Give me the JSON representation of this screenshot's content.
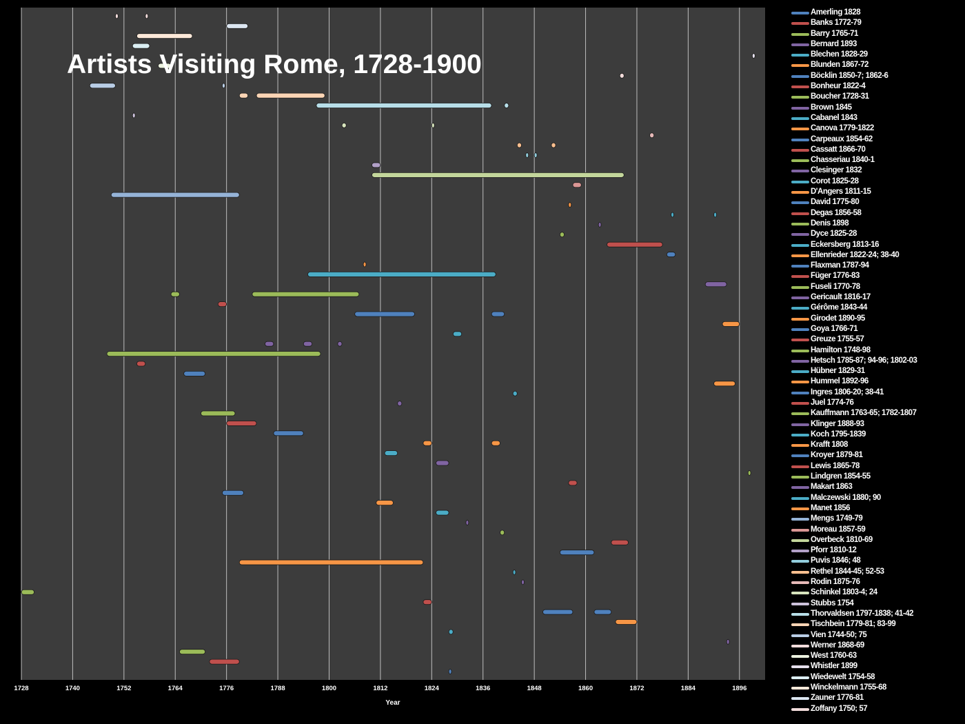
{
  "chart_data": {
    "type": "bar",
    "title": "Artists Visiting Rome, 1728-1900",
    "xlabel": "Year",
    "ylabel": "",
    "xlim": [
      1728,
      1902
    ],
    "xticks": [
      1728,
      1740,
      1752,
      1764,
      1776,
      1788,
      1800,
      1812,
      1824,
      1836,
      1848,
      1860,
      1872,
      1884,
      1896
    ],
    "grid": true,
    "legend_position": "right",
    "series": [
      {
        "name": "Amerling  1828",
        "color": "#4f81bd",
        "spans": [
          [
            1828,
            1828.4
          ]
        ]
      },
      {
        "name": "Banks   1772-79",
        "color": "#c0504d",
        "spans": [
          [
            1772,
            1779
          ]
        ]
      },
      {
        "name": "Barry 1765-71",
        "color": "#9bbb59",
        "spans": [
          [
            1765,
            1771
          ]
        ]
      },
      {
        "name": "Bernard 1893",
        "color": "#8064a2",
        "spans": [
          [
            1893,
            1893.4
          ]
        ]
      },
      {
        "name": "Blechen 1828-29",
        "color": "#4bacc6",
        "spans": [
          [
            1828,
            1829
          ]
        ]
      },
      {
        "name": "Blunden 1867-72",
        "color": "#f79646",
        "spans": [
          [
            1867,
            1872
          ]
        ]
      },
      {
        "name": "Böcklin 1850-7; 1862-6",
        "color": "#4f81bd",
        "spans": [
          [
            1850,
            1857
          ],
          [
            1862,
            1866
          ]
        ]
      },
      {
        "name": "Bonheur 1822-4",
        "color": "#c0504d",
        "spans": [
          [
            1822,
            1824
          ]
        ]
      },
      {
        "name": "Boucher 1728-31",
        "color": "#9bbb59",
        "spans": [
          [
            1728,
            1731
          ]
        ]
      },
      {
        "name": "Brown 1845",
        "color": "#8064a2",
        "spans": [
          [
            1845,
            1845.4
          ]
        ]
      },
      {
        "name": "Cabanel 1843",
        "color": "#4bacc6",
        "spans": [
          [
            1843,
            1843.4
          ]
        ]
      },
      {
        "name": "Canova 1779-1822",
        "color": "#f79646",
        "spans": [
          [
            1779,
            1822
          ]
        ]
      },
      {
        "name": "Carpeaux 1854-62",
        "color": "#4f81bd",
        "spans": [
          [
            1854,
            1862
          ]
        ]
      },
      {
        "name": "Cassatt 1866-70",
        "color": "#c0504d",
        "spans": [
          [
            1866,
            1870
          ]
        ]
      },
      {
        "name": "Chasseriau 1840-1",
        "color": "#9bbb59",
        "spans": [
          [
            1840,
            1841
          ]
        ]
      },
      {
        "name": "Clesinger 1832",
        "color": "#8064a2",
        "spans": [
          [
            1832,
            1832.4
          ]
        ]
      },
      {
        "name": "Corot 1825-28",
        "color": "#4bacc6",
        "spans": [
          [
            1825,
            1828
          ]
        ]
      },
      {
        "name": "D'Angers 1811-15",
        "color": "#f79646",
        "spans": [
          [
            1811,
            1815
          ]
        ]
      },
      {
        "name": "David 1775-80",
        "color": "#4f81bd",
        "spans": [
          [
            1775,
            1780
          ]
        ]
      },
      {
        "name": "Degas 1856-58",
        "color": "#c0504d",
        "spans": [
          [
            1856,
            1858
          ]
        ]
      },
      {
        "name": "Denis 1898",
        "color": "#9bbb59",
        "spans": [
          [
            1898,
            1898.4
          ]
        ]
      },
      {
        "name": "Dyce 1825-28",
        "color": "#8064a2",
        "spans": [
          [
            1825,
            1828
          ]
        ]
      },
      {
        "name": "Eckersberg 1813-16",
        "color": "#4bacc6",
        "spans": [
          [
            1813,
            1816
          ]
        ]
      },
      {
        "name": "Ellenrieder 1822-24; 38-40",
        "color": "#f79646",
        "spans": [
          [
            1822,
            1824
          ],
          [
            1838,
            1840
          ]
        ]
      },
      {
        "name": "Flaxman 1787-94",
        "color": "#4f81bd",
        "spans": [
          [
            1787,
            1794
          ]
        ]
      },
      {
        "name": "Füger 1776-83",
        "color": "#c0504d",
        "spans": [
          [
            1776,
            1783
          ]
        ]
      },
      {
        "name": "Fuseli 1770-78",
        "color": "#9bbb59",
        "spans": [
          [
            1770,
            1778
          ]
        ]
      },
      {
        "name": "Gericault 1816-17",
        "color": "#8064a2",
        "spans": [
          [
            1816,
            1817
          ]
        ]
      },
      {
        "name": "Gérôme 1843-44",
        "color": "#4bacc6",
        "spans": [
          [
            1843,
            1844
          ]
        ]
      },
      {
        "name": "Girodet 1890-95",
        "color": "#f79646",
        "spans": [
          [
            1890,
            1895
          ]
        ]
      },
      {
        "name": "Goya 1766-71",
        "color": "#4f81bd",
        "spans": [
          [
            1766,
            1771
          ]
        ]
      },
      {
        "name": "Greuze 1755-57",
        "color": "#c0504d",
        "spans": [
          [
            1755,
            1757
          ]
        ]
      },
      {
        "name": "Hamilton 1748-98",
        "color": "#9bbb59",
        "spans": [
          [
            1748,
            1798
          ]
        ]
      },
      {
        "name": "Hetsch 1785-87; 94-96; 1802-03",
        "color": "#8064a2",
        "spans": [
          [
            1785,
            1787
          ],
          [
            1794,
            1796
          ],
          [
            1802,
            1803
          ]
        ]
      },
      {
        "name": "Hübner 1829-31",
        "color": "#4bacc6",
        "spans": [
          [
            1829,
            1831
          ]
        ]
      },
      {
        "name": "Hummel 1892-96",
        "color": "#f79646",
        "spans": [
          [
            1892,
            1896
          ]
        ]
      },
      {
        "name": "Ingres 1806-20; 38-41",
        "color": "#4f81bd",
        "spans": [
          [
            1806,
            1820
          ],
          [
            1838,
            1841
          ]
        ]
      },
      {
        "name": "Juel 1774-76",
        "color": "#c0504d",
        "spans": [
          [
            1774,
            1776
          ]
        ]
      },
      {
        "name": "Kauffmann 1763-65; 1782-1807",
        "color": "#9bbb59",
        "spans": [
          [
            1763,
            1765
          ],
          [
            1782,
            1807
          ]
        ]
      },
      {
        "name": "Klinger 1888-93",
        "color": "#8064a2",
        "spans": [
          [
            1888,
            1893
          ]
        ]
      },
      {
        "name": "Koch 1795-1839",
        "color": "#4bacc6",
        "spans": [
          [
            1795,
            1839
          ]
        ]
      },
      {
        "name": "Krafft 1808",
        "color": "#f79646",
        "spans": [
          [
            1808,
            1808.4
          ]
        ]
      },
      {
        "name": "Kroyer 1879-81",
        "color": "#4f81bd",
        "spans": [
          [
            1879,
            1881
          ]
        ]
      },
      {
        "name": "Lewis 1865-78",
        "color": "#c0504d",
        "spans": [
          [
            1865,
            1878
          ]
        ]
      },
      {
        "name": "Lindgren 1854-55",
        "color": "#9bbb59",
        "spans": [
          [
            1854,
            1855
          ]
        ]
      },
      {
        "name": "Makart 1863",
        "color": "#8064a2",
        "spans": [
          [
            1863,
            1863.4
          ]
        ]
      },
      {
        "name": "Malczewski 1880; 90",
        "color": "#4bacc6",
        "spans": [
          [
            1880,
            1880.4
          ],
          [
            1890,
            1890.4
          ]
        ]
      },
      {
        "name": "Manet 1856",
        "color": "#f79646",
        "spans": [
          [
            1856,
            1856.4
          ]
        ]
      },
      {
        "name": "Mengs 1749-79",
        "color": "#95b3d7",
        "spans": [
          [
            1749,
            1779
          ]
        ]
      },
      {
        "name": "Moreau  1857-59",
        "color": "#da9694",
        "spans": [
          [
            1857,
            1859
          ]
        ]
      },
      {
        "name": "Overbeck 1810-69",
        "color": "#c3d69b",
        "spans": [
          [
            1810,
            1869
          ]
        ]
      },
      {
        "name": "Pforr 1810-12",
        "color": "#b1a0c7",
        "spans": [
          [
            1810,
            1812
          ]
        ]
      },
      {
        "name": "Puvis 1846; 48",
        "color": "#92cddc",
        "spans": [
          [
            1846,
            1846.4
          ],
          [
            1848,
            1848.4
          ]
        ]
      },
      {
        "name": "Rethel 1844-45; 52-53",
        "color": "#fabf8f",
        "spans": [
          [
            1844,
            1845
          ],
          [
            1852,
            1853
          ]
        ]
      },
      {
        "name": "Rodin 1875-76",
        "color": "#e6b9b8",
        "spans": [
          [
            1875,
            1876
          ]
        ]
      },
      {
        "name": "Schinkel 1803-4; 24",
        "color": "#d7e4bd",
        "spans": [
          [
            1803,
            1804
          ],
          [
            1824,
            1824.4
          ]
        ]
      },
      {
        "name": "Stubbs 1754",
        "color": "#ccc1da",
        "spans": [
          [
            1754,
            1754.4
          ]
        ]
      },
      {
        "name": "Thorvaldsen 1797-1838; 41-42",
        "color": "#b7dee8",
        "spans": [
          [
            1797,
            1838
          ],
          [
            1841,
            1842
          ]
        ]
      },
      {
        "name": "Tischbein 1779-81; 83-99",
        "color": "#fcd5b5",
        "spans": [
          [
            1779,
            1781
          ],
          [
            1783,
            1799
          ]
        ]
      },
      {
        "name": "Vien 1744-50; 75",
        "color": "#b9cde5",
        "spans": [
          [
            1744,
            1750
          ],
          [
            1775,
            1775.4
          ]
        ]
      },
      {
        "name": "Werner 1868-69",
        "color": "#f2dcdb",
        "spans": [
          [
            1868,
            1869
          ]
        ]
      },
      {
        "name": "West 1760-63",
        "color": "#ebf1de",
        "spans": [
          [
            1760,
            1763
          ]
        ]
      },
      {
        "name": "Whistler 1899",
        "color": "#e4dfec",
        "spans": [
          [
            1899,
            1899.4
          ]
        ]
      },
      {
        "name": "Wiedewelt 1754-58",
        "color": "#dbeef3",
        "spans": [
          [
            1754,
            1758
          ]
        ]
      },
      {
        "name": "Winckelmann 1755-68",
        "color": "#fde9d9",
        "spans": [
          [
            1755,
            1768
          ]
        ]
      },
      {
        "name": "Zauner 1776-81",
        "color": "#dce6f1",
        "spans": [
          [
            1776,
            1781
          ]
        ]
      },
      {
        "name": "Zoffany 1750; 57",
        "color": "#f2dcdb",
        "spans": [
          [
            1750,
            1750.4
          ],
          [
            1757,
            1757.4
          ]
        ]
      }
    ]
  }
}
